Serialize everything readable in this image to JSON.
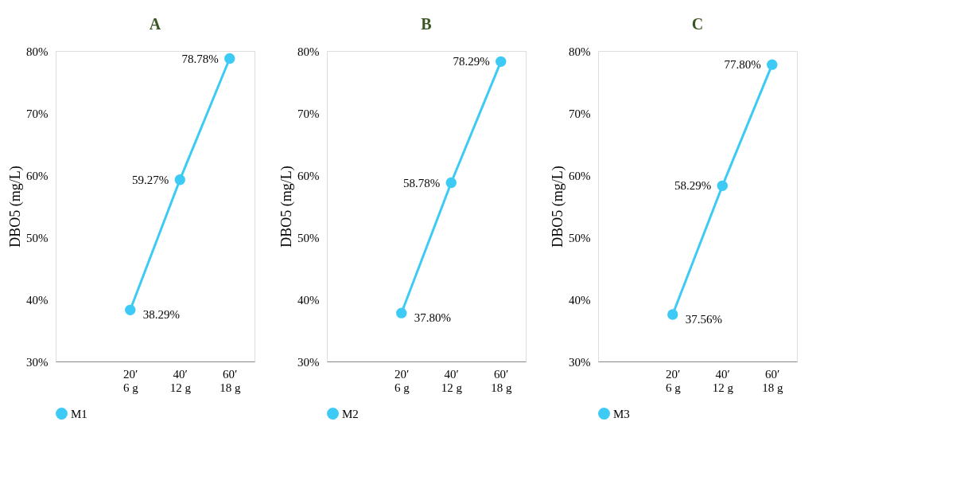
{
  "chart_data": [
    {
      "type": "line",
      "title": "A",
      "ylabel": "DBO5 (mg/L)",
      "categories": [
        null,
        "20′\n6 g",
        "40′\n12 g",
        "60′\n18 g"
      ],
      "series": [
        {
          "name": "M1",
          "color": "#3dcbf5",
          "values": [
            null,
            38.29,
            59.27,
            78.78
          ],
          "value_labels": [
            null,
            "38.29%",
            "59.27%",
            "78.78%"
          ]
        }
      ],
      "ylim": [
        30,
        80
      ],
      "yticks": [
        {
          "value": 30,
          "label": "30%"
        },
        {
          "value": 40,
          "label": "40%"
        },
        {
          "value": 50,
          "label": "50%"
        },
        {
          "value": 60,
          "label": "60%"
        },
        {
          "value": 70,
          "label": "70%"
        },
        {
          "value": 80,
          "label": "80%"
        }
      ],
      "marker": "circle",
      "legend": "bottom",
      "grid": false
    },
    {
      "type": "line",
      "title": "B",
      "ylabel": "DBO5 (mg/L)",
      "categories": [
        null,
        "20′\n6 g",
        "40′\n12 g",
        "60′\n18 g"
      ],
      "series": [
        {
          "name": "M2",
          "color": "#3dcbf5",
          "values": [
            null,
            37.8,
            58.78,
            78.29
          ],
          "value_labels": [
            null,
            "37.80%",
            "58.78%",
            "78.29%"
          ]
        }
      ],
      "ylim": [
        30,
        80
      ],
      "yticks": [
        {
          "value": 30,
          "label": "30%"
        },
        {
          "value": 40,
          "label": "40%"
        },
        {
          "value": 50,
          "label": "50%"
        },
        {
          "value": 60,
          "label": "60%"
        },
        {
          "value": 70,
          "label": "70%"
        },
        {
          "value": 80,
          "label": "80%"
        }
      ],
      "marker": "circle",
      "legend": "bottom",
      "grid": false
    },
    {
      "type": "line",
      "title": "C",
      "ylabel": "DBO5 (mg/L)",
      "categories": [
        null,
        "20′\n6 g",
        "40′\n12 g",
        "60′\n18 g"
      ],
      "series": [
        {
          "name": "M3",
          "color": "#3dcbf5",
          "values": [
            null,
            37.56,
            58.29,
            77.8
          ],
          "value_labels": [
            null,
            "37.56%",
            "58.29%",
            "77.80%"
          ]
        }
      ],
      "ylim": [
        30,
        80
      ],
      "yticks": [
        {
          "value": 30,
          "label": "30%"
        },
        {
          "value": 40,
          "label": "40%"
        },
        {
          "value": 50,
          "label": "50%"
        },
        {
          "value": 60,
          "label": "60%"
        },
        {
          "value": 70,
          "label": "70%"
        },
        {
          "value": 80,
          "label": "80%"
        }
      ],
      "marker": "circle",
      "legend": "bottom",
      "grid": false
    }
  ]
}
